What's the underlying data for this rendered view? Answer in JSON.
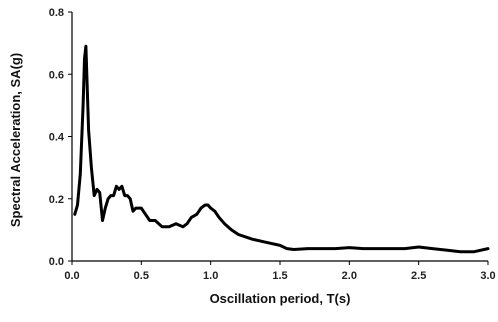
{
  "chart_data": {
    "type": "line",
    "title": "",
    "xlabel": "Oscillation period, T(s)",
    "ylabel": "Spectral Acceleration, SA(g)",
    "xlim": [
      0,
      3.0
    ],
    "ylim": [
      0,
      0.8
    ],
    "xticks": [
      "0.0",
      "0.5",
      "1.0",
      "1.5",
      "2.0",
      "2.5",
      "3.0"
    ],
    "yticks": [
      "0.0",
      "0.2",
      "0.4",
      "0.6",
      "0.8"
    ],
    "grid": false,
    "legend": "none",
    "line_color": "#000000",
    "series": [
      {
        "x": [
          0.02,
          0.04,
          0.06,
          0.08,
          0.09,
          0.1,
          0.11,
          0.12,
          0.14,
          0.16,
          0.18,
          0.2,
          0.22,
          0.24,
          0.26,
          0.28,
          0.3,
          0.32,
          0.34,
          0.36,
          0.38,
          0.4,
          0.42,
          0.44,
          0.46,
          0.48,
          0.5,
          0.53,
          0.56,
          0.6,
          0.65,
          0.7,
          0.75,
          0.8,
          0.83,
          0.86,
          0.9,
          0.93,
          0.96,
          0.98,
          1.0,
          1.03,
          1.06,
          1.1,
          1.15,
          1.2,
          1.3,
          1.4,
          1.5,
          1.55,
          1.6,
          1.7,
          1.8,
          1.9,
          2.0,
          2.1,
          2.2,
          2.3,
          2.4,
          2.5,
          2.6,
          2.7,
          2.8,
          2.9,
          3.0
        ],
        "values": [
          0.15,
          0.18,
          0.28,
          0.5,
          0.65,
          0.69,
          0.55,
          0.42,
          0.3,
          0.21,
          0.23,
          0.22,
          0.13,
          0.17,
          0.2,
          0.21,
          0.21,
          0.24,
          0.23,
          0.24,
          0.21,
          0.21,
          0.2,
          0.16,
          0.17,
          0.17,
          0.17,
          0.15,
          0.13,
          0.13,
          0.11,
          0.11,
          0.12,
          0.11,
          0.12,
          0.14,
          0.15,
          0.17,
          0.18,
          0.18,
          0.17,
          0.16,
          0.14,
          0.12,
          0.1,
          0.085,
          0.07,
          0.06,
          0.05,
          0.04,
          0.037,
          0.04,
          0.04,
          0.04,
          0.043,
          0.04,
          0.04,
          0.04,
          0.04,
          0.045,
          0.04,
          0.035,
          0.03,
          0.03,
          0.04
        ]
      }
    ]
  }
}
